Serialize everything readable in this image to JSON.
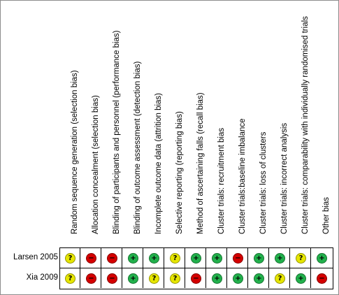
{
  "domains": [
    "Random sequence generation (selection bias)",
    "Allocation concealment (selection bias)",
    "Blinding of participants and personnel (performance bias)",
    "Blinding of outcome assessment (detection bias)",
    "Incomplete outcome data (attrition bias)",
    "Selective reporting (reporting bias)",
    "Method of ascertaining falls (recall bias)",
    "Cluster trials: recruitment bias",
    "Cluster trials:baseline imbalance",
    "Cluster trials: loss of clusters",
    "Cluster trials: incorrect analysis",
    "Cluster trials: comparability with individually randomised trials",
    "Other bias"
  ],
  "studies": [
    {
      "name": "Larsen 2005",
      "judgements": [
        "unclear",
        "high",
        "high",
        "low",
        "low",
        "unclear",
        "low",
        "low",
        "high",
        "low",
        "low",
        "unclear",
        "low"
      ]
    },
    {
      "name": "Xia 2009",
      "judgements": [
        "unclear",
        "high",
        "high",
        "low",
        "unclear",
        "unclear",
        "high",
        "low",
        "low",
        "low",
        "unclear",
        "low",
        "high"
      ]
    }
  ],
  "symbols": {
    "low": "+",
    "high": "−",
    "unclear": "?"
  },
  "colors": {
    "low": "#22b14c",
    "high": "#d40000",
    "unclear": "#e6e600"
  }
}
